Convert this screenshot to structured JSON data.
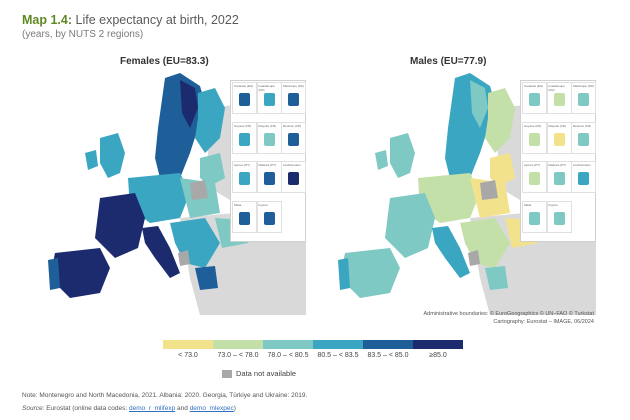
{
  "title": {
    "prefix": "Map 1.4:",
    "rest": " Life expectancy at birth, 2022"
  },
  "subtitle": "(years, by NUTS 2 regions)",
  "panels": {
    "females": "Females (EU=83.3)",
    "males": "Males (EU=77.9)"
  },
  "insets": [
    "Canarias (ES)",
    "Guadeloupe (FR)",
    "Martinique (FR)",
    "Guyane (FR)",
    "Mayotte (FR)",
    "Réunion (FR)",
    "Açores (PT)",
    "Madeira (PT)",
    "Liechtenstein",
    "Malta",
    "Kypros"
  ],
  "admin_boundaries": "Administrative boundaries: © EuroGeographics © UN–FAO © Turkstat",
  "cartography": "Cartography: Eurostat – IMAGE, 06/2024",
  "legend": {
    "classes": [
      {
        "label": "< 73.0",
        "color": "#f3e28c"
      },
      {
        "label": "73.0 – < 78.0",
        "color": "#c3e0a8"
      },
      {
        "label": "78.0 – < 80.5",
        "color": "#7ec9c4"
      },
      {
        "label": "80.5 – < 83.5",
        "color": "#3aa6c2"
      },
      {
        "label": "83.5 – < 85.0",
        "color": "#1f5f99"
      },
      {
        "label": "≥85.0",
        "color": "#1c2a6e"
      }
    ],
    "not_available": "Data not available",
    "not_available_color": "#a8a8a8"
  },
  "note": "Note: Montenegro and North Macedonia, 2021. Albania: 2020. Georgia, Türkiye and Ukraine: 2019.",
  "source": {
    "prefix": "Source:",
    "text": " Eurostat (online data codes: ",
    "link1": "demo_r_mlifexp",
    "mid": " and ",
    "link2": "demo_mlexpec",
    "end": ")"
  },
  "colors": {
    "title_green": "#5e8a24",
    "sea": "#ffffff",
    "land_outside": "#d9d9d9"
  }
}
